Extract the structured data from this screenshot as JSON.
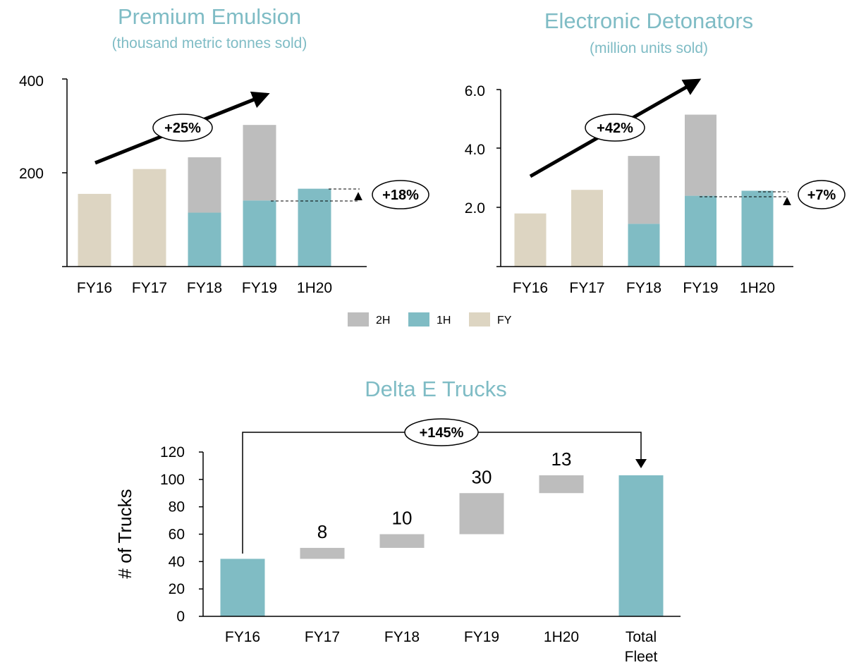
{
  "colors": {
    "fy": "#ddd5c2",
    "h1": "#80bcc4",
    "h2": "#bdbdbd",
    "title": "#7fbcc5"
  },
  "legend": [
    {
      "label": "2H",
      "color": "#bdbdbd"
    },
    {
      "label": "1H",
      "color": "#80bcc4"
    },
    {
      "label": "FY",
      "color": "#ddd5c2"
    }
  ],
  "chart_data": [
    {
      "type": "bar",
      "title": "Premium Emulsion",
      "subtitle": "(thousand metric tonnes sold)",
      "categories": [
        "FY16",
        "FY17",
        "FY18",
        "FY19",
        "1H20"
      ],
      "series": [
        {
          "name": "FY",
          "values": [
            155,
            208,
            null,
            null,
            null
          ]
        },
        {
          "name": "1H",
          "values": [
            null,
            null,
            115,
            141,
            166
          ]
        },
        {
          "name": "2H",
          "values": [
            null,
            null,
            118,
            161,
            null
          ]
        }
      ],
      "yticks": [
        "200",
        "400"
      ],
      "ylim": [
        0,
        400
      ],
      "growth_label": "+25%",
      "comparison_label": "+18%",
      "comparison_arrow": "▲"
    },
    {
      "type": "bar",
      "title": "Electronic Detonators",
      "subtitle": "(million units sold)",
      "categories": [
        "FY16",
        "FY17",
        "FY18",
        "FY19",
        "1H20"
      ],
      "series": [
        {
          "name": "FY",
          "values": [
            1.8,
            2.6,
            null,
            null,
            null
          ]
        },
        {
          "name": "1H",
          "values": [
            null,
            null,
            1.45,
            2.4,
            2.57
          ]
        },
        {
          "name": "2H",
          "values": [
            null,
            null,
            2.3,
            2.75,
            null
          ]
        }
      ],
      "yticks": [
        "2.0",
        "4.0",
        "6.0"
      ],
      "ylim": [
        0,
        6
      ],
      "growth_label": "+42%",
      "comparison_label": "+7%",
      "comparison_arrow": "▲"
    },
    {
      "type": "waterfall",
      "title": "Delta E Trucks",
      "ylabel": "# of Trucks",
      "categories": [
        "FY16",
        "FY17",
        "FY18",
        "FY19",
        "1H20",
        "Total Fleet"
      ],
      "category_lines": [
        [
          "FY16"
        ],
        [
          "FY17"
        ],
        [
          "FY18"
        ],
        [
          "FY19"
        ],
        [
          "1H20"
        ],
        [
          "Total",
          "Fleet"
        ]
      ],
      "start_value": 42,
      "increments": [
        8,
        10,
        30,
        13
      ],
      "increment_labels": [
        "8",
        "10",
        "30",
        "13"
      ],
      "total_value": 103,
      "yticks": [
        "0",
        "20",
        "40",
        "60",
        "80",
        "100",
        "120"
      ],
      "ylim": [
        0,
        120
      ],
      "growth_label": "+145%"
    }
  ]
}
